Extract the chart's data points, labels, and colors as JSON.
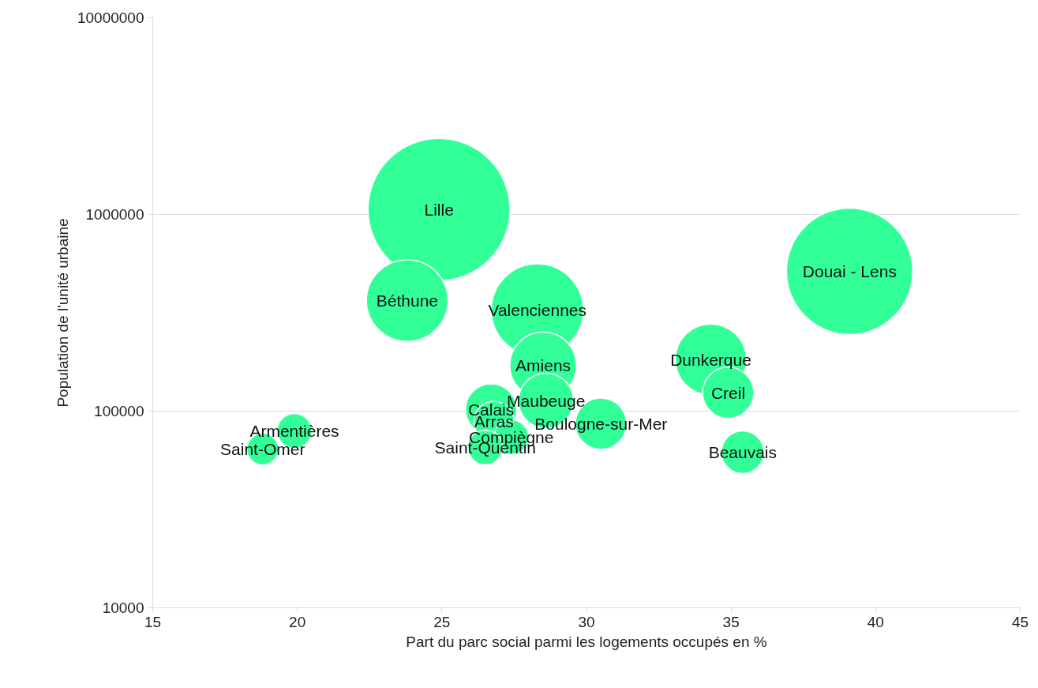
{
  "chart_data": {
    "type": "bubble",
    "xlabel": "Part du parc social parmi les logements occupés en %",
    "ylabel": "Population de l'unité urbaine",
    "log": "y",
    "grid": "y",
    "color": "#33ff99",
    "xlim": [
      15,
      45
    ],
    "xticks": [
      15,
      20,
      25,
      30,
      35,
      40,
      45
    ],
    "ylim": [
      10000,
      10000000
    ],
    "yticks": [
      10000,
      100000,
      1000000,
      10000000
    ],
    "x": [
      24.9,
      39.1,
      23.8,
      28.3,
      28.5,
      34.3,
      34.9,
      28.6,
      26.7,
      26.8,
      30.5,
      27.4,
      26.5,
      19.9,
      18.8,
      35.4
    ],
    "values": [
      1060000,
      514000,
      365000,
      327000,
      171000,
      183000,
      124000,
      113000,
      102000,
      88700,
      86300,
      73700,
      65400,
      79400,
      64100,
      61800
    ],
    "sizes": [
      1,
      0.79,
      0.33,
      0.42,
      0.22,
      0.25,
      0.13,
      0.15,
      0.13,
      0.08,
      0.13,
      0.06,
      0.06,
      0.06,
      0.05,
      0.09
    ],
    "value_labels": [
      "Lille",
      "Douai - Lens",
      "Béthune",
      "Valenciennes",
      "Amiens",
      "Dunkerque",
      "Creil",
      "Maubeuge",
      "Calais",
      "Arras",
      "Boulogne-sur-Mer",
      "Compiègne",
      "Saint-Quentin",
      "Armentières",
      "Saint-Omer",
      "Beauvais"
    ]
  }
}
